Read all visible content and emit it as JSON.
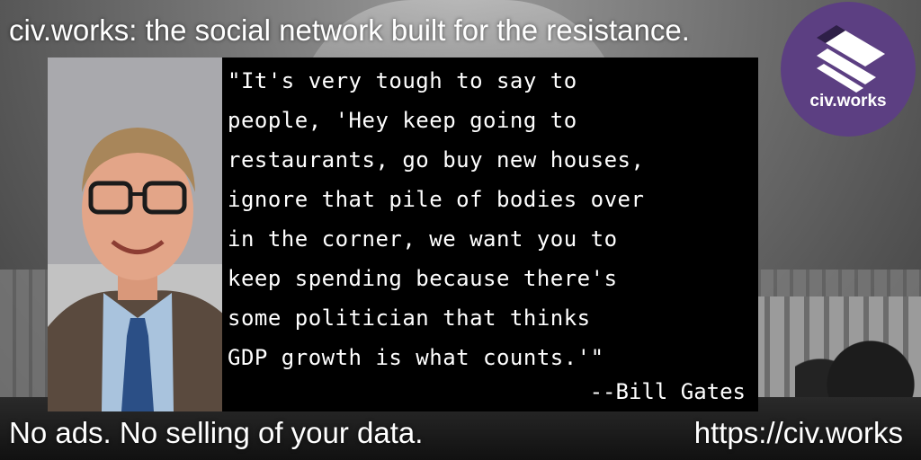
{
  "header": {
    "headline": "civ.works: the social network built for the resistance."
  },
  "logo": {
    "label": "civ.works",
    "icon": "stacked-bars-logo-icon",
    "background_color": "#5c3f82"
  },
  "photo": {
    "subject": "portrait-photo"
  },
  "quote": {
    "text": "\"It's very tough to say to\npeople, 'Hey keep going to\nrestaurants, go buy new houses,\nignore that pile of bodies over\nin the corner, we want you to\nkeep spending because there's\nsome politician that thinks\nGDP growth is what counts.'\"",
    "attribution": "--Bill Gates"
  },
  "footer": {
    "tagline": "No ads. No selling of your data.",
    "url": "https://civ.works"
  }
}
